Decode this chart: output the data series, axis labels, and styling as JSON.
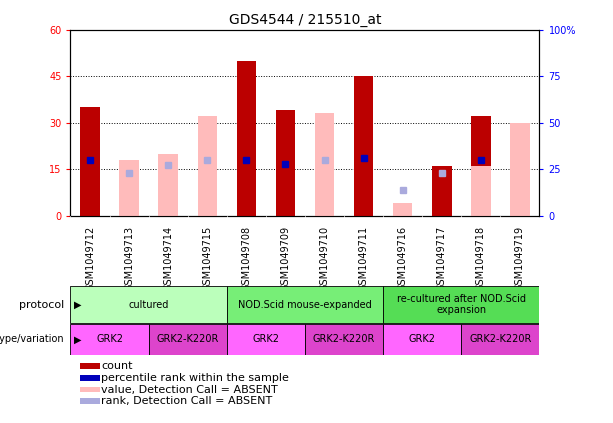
{
  "title": "GDS4544 / 215510_at",
  "samples": [
    "GSM1049712",
    "GSM1049713",
    "GSM1049714",
    "GSM1049715",
    "GSM1049708",
    "GSM1049709",
    "GSM1049710",
    "GSM1049711",
    "GSM1049716",
    "GSM1049717",
    "GSM1049718",
    "GSM1049719"
  ],
  "count_values": [
    35,
    0,
    0,
    0,
    50,
    34,
    0,
    45,
    0,
    16,
    32,
    0
  ],
  "absent_values": [
    0,
    18,
    20,
    32,
    0,
    0,
    33,
    0,
    4,
    0,
    16,
    30
  ],
  "rank_present": [
    30,
    0,
    0,
    0,
    30,
    28,
    0,
    31,
    0,
    0,
    30,
    0
  ],
  "rank_absent": [
    0,
    23,
    27,
    30,
    0,
    0,
    30,
    0,
    14,
    23,
    0,
    0
  ],
  "ylim_left": [
    0,
    60
  ],
  "ylim_right": [
    0,
    100
  ],
  "yticks_left": [
    0,
    15,
    30,
    45,
    60
  ],
  "yticks_right": [
    0,
    25,
    50,
    75,
    100
  ],
  "ytick_labels_left": [
    "0",
    "15",
    "30",
    "45",
    "60"
  ],
  "ytick_labels_right": [
    "0",
    "25",
    "50",
    "75",
    "100%"
  ],
  "bar_color_count": "#bb0000",
  "bar_color_absent": "#ffbbbb",
  "rank_color_present": "#0000bb",
  "rank_color_absent": "#aaaadd",
  "protocol_groups": [
    {
      "label": "cultured",
      "start": 0,
      "end": 4,
      "color": "#bbffbb"
    },
    {
      "label": "NOD.Scid mouse-expanded",
      "start": 4,
      "end": 8,
      "color": "#77ee77"
    },
    {
      "label": "re-cultured after NOD.Scid\nexpansion",
      "start": 8,
      "end": 12,
      "color": "#55dd55"
    }
  ],
  "genotype_groups": [
    {
      "label": "GRK2",
      "start": 0,
      "end": 2,
      "color": "#ff66ff"
    },
    {
      "label": "GRK2-K220R",
      "start": 2,
      "end": 4,
      "color": "#dd44cc"
    },
    {
      "label": "GRK2",
      "start": 4,
      "end": 6,
      "color": "#ff66ff"
    },
    {
      "label": "GRK2-K220R",
      "start": 6,
      "end": 8,
      "color": "#dd44cc"
    },
    {
      "label": "GRK2",
      "start": 8,
      "end": 10,
      "color": "#ff66ff"
    },
    {
      "label": "GRK2-K220R",
      "start": 10,
      "end": 12,
      "color": "#dd44cc"
    }
  ],
  "bar_width": 0.5,
  "bg_color": "#ffffff",
  "plot_bg_color": "#ffffff",
  "xtick_bg_color": "#cccccc",
  "title_fontsize": 10,
  "tick_fontsize": 7,
  "label_fontsize": 8,
  "legend_fontsize": 8,
  "protocol_fontsize": 8,
  "genotype_fontsize": 8
}
